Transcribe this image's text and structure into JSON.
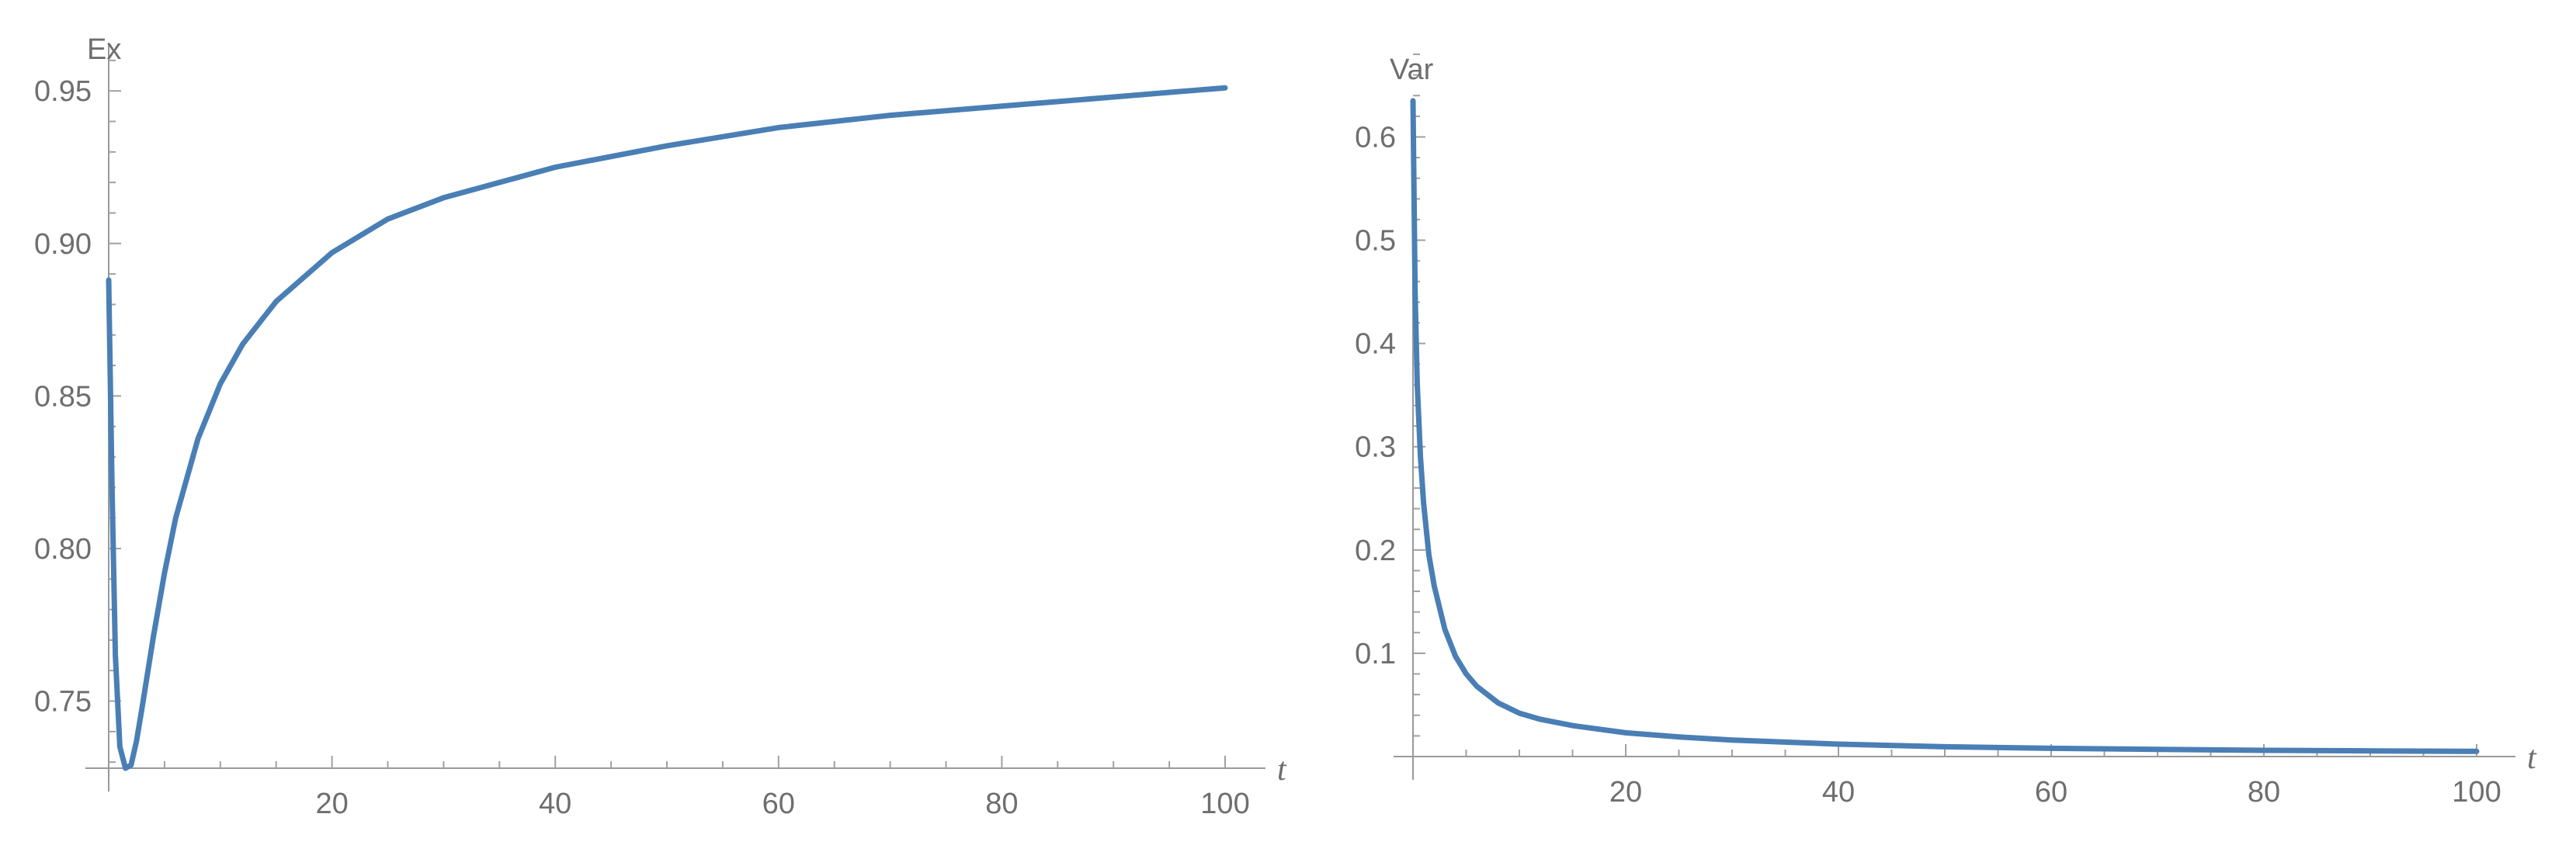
{
  "colors": {
    "series": "#4a7fb5",
    "axis": "#999999",
    "text": "#6e6e6e"
  },
  "chart_data": [
    {
      "type": "line",
      "title": "",
      "xlabel": "t",
      "ylabel": "Ex",
      "xlim": [
        0,
        100
      ],
      "ylim": [
        0.728,
        0.962
      ],
      "x_ticks": [
        20,
        40,
        60,
        80,
        100
      ],
      "y_ticks": [
        0.75,
        0.8,
        0.85,
        0.9,
        0.95
      ],
      "x_tick_labels": [
        "20",
        "40",
        "60",
        "80",
        "100"
      ],
      "y_tick_labels": [
        "0.75",
        "0.80",
        "0.85",
        "0.90",
        "0.95"
      ],
      "grid": false,
      "series": [
        {
          "x": [
            0,
            0.3,
            0.6,
            1.0,
            1.5,
            2,
            2.5,
            3,
            4,
            5,
            6,
            8,
            10,
            12,
            15,
            20,
            25,
            30,
            40,
            50,
            60,
            70,
            80,
            90,
            100
          ],
          "y": [
            0.888,
            0.82,
            0.765,
            0.735,
            0.728,
            0.729,
            0.737,
            0.748,
            0.771,
            0.792,
            0.81,
            0.836,
            0.854,
            0.867,
            0.881,
            0.897,
            0.908,
            0.915,
            0.925,
            0.932,
            0.938,
            0.942,
            0.945,
            0.948,
            0.951
          ]
        }
      ]
    },
    {
      "type": "line",
      "title": "",
      "xlabel": "t",
      "ylabel": "Var",
      "xlim": [
        0,
        100
      ],
      "ylim": [
        0,
        0.68
      ],
      "x_ticks": [
        20,
        40,
        60,
        80,
        100
      ],
      "y_ticks": [
        0.1,
        0.2,
        0.3,
        0.4,
        0.5,
        0.6
      ],
      "x_tick_labels": [
        "20",
        "40",
        "60",
        "80",
        "100"
      ],
      "y_tick_labels": [
        "0.1",
        "0.2",
        "0.3",
        "0.4",
        "0.5",
        "0.6"
      ],
      "grid": false,
      "series": [
        {
          "x": [
            0,
            0.2,
            0.4,
            0.7,
            1,
            1.5,
            2,
            3,
            4,
            5,
            6,
            8,
            10,
            12,
            15,
            20,
            25,
            30,
            40,
            50,
            60,
            70,
            80,
            90,
            100
          ],
          "y": [
            0.635,
            0.45,
            0.36,
            0.29,
            0.245,
            0.195,
            0.165,
            0.123,
            0.097,
            0.08,
            0.068,
            0.052,
            0.042,
            0.036,
            0.03,
            0.023,
            0.019,
            0.016,
            0.012,
            0.0095,
            0.008,
            0.007,
            0.006,
            0.0055,
            0.005
          ]
        }
      ]
    }
  ]
}
